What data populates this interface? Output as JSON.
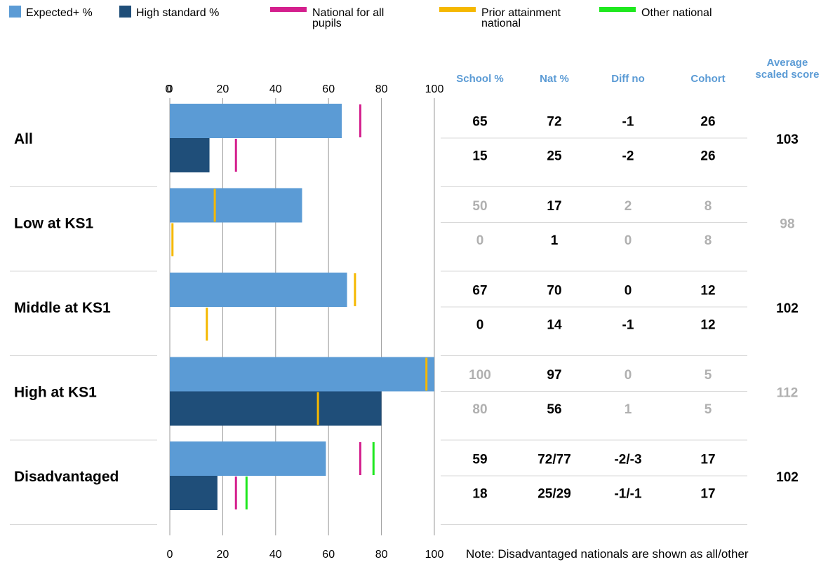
{
  "chart_data": {
    "type": "bar",
    "orientation": "horizontal",
    "legend": {
      "position": "top",
      "items": [
        {
          "key": "expected",
          "label": "Expected+ %",
          "symbol": "square",
          "color": "#5b9bd5"
        },
        {
          "key": "high",
          "label": "High standard %",
          "symbol": "square",
          "color": "#1f4e79"
        },
        {
          "key": "nat_all",
          "label": [
            "National for all",
            "pupils"
          ],
          "symbol": "line",
          "color": "#d41f8d"
        },
        {
          "key": "prior",
          "label": [
            "Prior attainment",
            "national"
          ],
          "symbol": "line",
          "color": "#f5b800"
        },
        {
          "key": "other",
          "label": "Other national",
          "symbol": "line",
          "color": "#1ee81e"
        }
      ]
    },
    "x_axis": {
      "range": [
        0,
        100
      ],
      "top_ticks": [
        "0",
        "0",
        "20",
        "40",
        "60",
        "80",
        "100"
      ],
      "bottom_ticks": [
        "0",
        "20",
        "40",
        "60",
        "80",
        "100"
      ],
      "grid": true
    },
    "table_headers": {
      "school": "School %",
      "nat": "Nat %",
      "diff": "Diff no",
      "cohort": "Cohort",
      "avg": [
        "Average",
        "scaled score"
      ]
    },
    "colors": {
      "expected": "#5b9bd5",
      "high": "#1f4e79",
      "nat_all": "#d41f8d",
      "prior": "#f5b800",
      "other": "#1ee81e",
      "header_blue": "#5b9bd5",
      "muted_text": "#b0b0b0",
      "grid": "#999999",
      "row_divider": "#d9d9d9"
    },
    "groups": [
      {
        "label": "All",
        "muted": false,
        "avg_scaled_score": "103",
        "rows": [
          {
            "measure": "expected",
            "value": 65,
            "markers": [
              {
                "type": "nat_all",
                "value": 72
              }
            ],
            "school": "65",
            "nat": "72",
            "diff": "-1",
            "cohort": "26"
          },
          {
            "measure": "high",
            "value": 15,
            "markers": [
              {
                "type": "nat_all",
                "value": 25
              }
            ],
            "school": "15",
            "nat": "25",
            "diff": "-2",
            "cohort": "26"
          }
        ]
      },
      {
        "label": "Low at KS1",
        "muted": true,
        "avg_scaled_score": "98",
        "rows": [
          {
            "measure": "expected",
            "value": 50,
            "markers": [
              {
                "type": "prior",
                "value": 17
              }
            ],
            "school": "50",
            "nat": "17",
            "diff": "2",
            "cohort": "8"
          },
          {
            "measure": "high",
            "value": 0,
            "markers": [
              {
                "type": "prior",
                "value": 1
              }
            ],
            "school": "0",
            "nat": "1",
            "diff": "0",
            "cohort": "8"
          }
        ]
      },
      {
        "label": "Middle at KS1",
        "muted": false,
        "avg_scaled_score": "102",
        "rows": [
          {
            "measure": "expected",
            "value": 67,
            "markers": [
              {
                "type": "prior",
                "value": 70
              }
            ],
            "school": "67",
            "nat": "70",
            "diff": "0",
            "cohort": "12"
          },
          {
            "measure": "high",
            "value": 0,
            "markers": [
              {
                "type": "prior",
                "value": 14
              }
            ],
            "school": "0",
            "nat": "14",
            "diff": "-1",
            "cohort": "12"
          }
        ]
      },
      {
        "label": "High at KS1",
        "muted": true,
        "avg_scaled_score": "112",
        "rows": [
          {
            "measure": "expected",
            "value": 100,
            "markers": [
              {
                "type": "prior",
                "value": 97
              }
            ],
            "school": "100",
            "nat": "97",
            "diff": "0",
            "cohort": "5"
          },
          {
            "measure": "high",
            "value": 80,
            "markers": [
              {
                "type": "prior",
                "value": 56
              }
            ],
            "school": "80",
            "nat": "56",
            "diff": "1",
            "cohort": "5"
          }
        ]
      },
      {
        "label": "Disadvantaged",
        "muted": false,
        "avg_scaled_score": "102",
        "rows": [
          {
            "measure": "expected",
            "value": 59,
            "markers": [
              {
                "type": "nat_all",
                "value": 72
              },
              {
                "type": "other",
                "value": 77
              }
            ],
            "school": "59",
            "nat": "72/77",
            "diff": "-2/-3",
            "cohort": "17"
          },
          {
            "measure": "high",
            "value": 18,
            "markers": [
              {
                "type": "nat_all",
                "value": 25
              },
              {
                "type": "other",
                "value": 29
              }
            ],
            "school": "18",
            "nat": "25/29",
            "diff": "-1/-1",
            "cohort": "17"
          }
        ]
      }
    ],
    "note": "Note: Disadvantaged nationals are shown as all/other"
  }
}
